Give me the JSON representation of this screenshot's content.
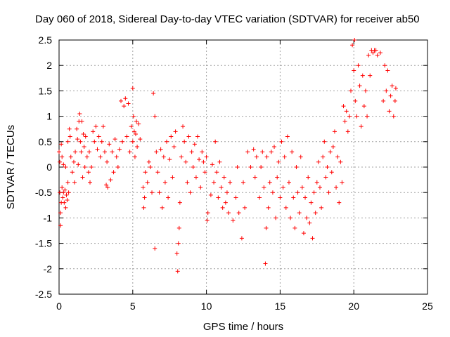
{
  "chart_data": {
    "type": "scatter",
    "title": "Day 060 of 2018, Sidereal Day-to-day VTEC variation (SDTVAR) for receiver ab50",
    "xlabel": "GPS time / hours",
    "ylabel": "SDTVAR / TECUs",
    "xlim": [
      0,
      25
    ],
    "ylim": [
      -2.5,
      2.5
    ],
    "xticks": [
      0,
      5,
      10,
      15,
      20,
      25
    ],
    "xtick_labels": [
      "0",
      "5",
      "10",
      "15",
      "20",
      "25"
    ],
    "yticks": [
      -2.5,
      -2,
      -1.5,
      -1,
      -0.5,
      0,
      0.5,
      1,
      1.5,
      2,
      2.5
    ],
    "ytick_labels": [
      "-2.5",
      "-2",
      "-1.5",
      "-1",
      "-0.5",
      "0",
      "0.5",
      "1",
      "1.5",
      "2",
      "2.5"
    ],
    "grid": true,
    "marker": "plus",
    "marker_color": "#ff0000",
    "series": [
      {
        "name": "ab50",
        "points": [
          [
            0.0,
            0.3
          ],
          [
            0.05,
            0.1
          ],
          [
            0.05,
            -0.5
          ],
          [
            0.1,
            -0.9
          ],
          [
            0.1,
            -1.15
          ],
          [
            0.15,
            -0.7
          ],
          [
            0.15,
            0.45
          ],
          [
            0.2,
            -0.4
          ],
          [
            0.2,
            0.2
          ],
          [
            0.25,
            -0.6
          ],
          [
            0.3,
            -0.5
          ],
          [
            0.3,
            0.05
          ],
          [
            0.35,
            -0.7
          ],
          [
            0.4,
            -0.45
          ],
          [
            0.45,
            -0.8
          ],
          [
            0.45,
            0.0
          ],
          [
            0.5,
            -0.55
          ],
          [
            0.55,
            -0.65
          ],
          [
            0.6,
            -0.3
          ],
          [
            0.6,
            0.5
          ],
          [
            0.65,
            -0.5
          ],
          [
            0.7,
            0.75
          ],
          [
            0.75,
            0.6
          ],
          [
            0.8,
            0.2
          ],
          [
            0.9,
            -0.1
          ],
          [
            1.0,
            0.1
          ],
          [
            1.05,
            -0.3
          ],
          [
            1.1,
            0.3
          ],
          [
            1.2,
            0.75
          ],
          [
            1.25,
            0.55
          ],
          [
            1.3,
            0.05
          ],
          [
            1.35,
            0.9
          ],
          [
            1.4,
            1.05
          ],
          [
            1.45,
            0.5
          ],
          [
            1.5,
            0.3
          ],
          [
            1.55,
            0.9
          ],
          [
            1.6,
            -0.2
          ],
          [
            1.65,
            0.65
          ],
          [
            1.7,
            0.4
          ],
          [
            1.75,
            0.0
          ],
          [
            1.8,
            0.6
          ],
          [
            1.9,
            0.2
          ],
          [
            2.0,
            -0.1
          ],
          [
            2.05,
            0.3
          ],
          [
            2.1,
            -0.3
          ],
          [
            2.2,
            0.0
          ],
          [
            2.3,
            0.7
          ],
          [
            2.4,
            0.5
          ],
          [
            2.5,
            0.8
          ],
          [
            2.6,
            0.35
          ],
          [
            2.7,
            0.6
          ],
          [
            2.8,
            0.2
          ],
          [
            2.9,
            0.5
          ],
          [
            3.0,
            0.8
          ],
          [
            3.1,
            0.3
          ],
          [
            3.2,
            -0.35
          ],
          [
            3.25,
            0.1
          ],
          [
            3.3,
            -0.4
          ],
          [
            3.4,
            0.45
          ],
          [
            3.5,
            -0.25
          ],
          [
            3.6,
            0.3
          ],
          [
            3.7,
            -0.1
          ],
          [
            3.8,
            0.55
          ],
          [
            3.9,
            0.2
          ],
          [
            4.0,
            0.0
          ],
          [
            4.1,
            0.35
          ],
          [
            4.2,
            1.3
          ],
          [
            4.3,
            0.5
          ],
          [
            4.4,
            1.2
          ],
          [
            4.5,
            1.35
          ],
          [
            4.6,
            0.6
          ],
          [
            4.7,
            1.25
          ],
          [
            4.8,
            0.3
          ],
          [
            4.9,
            0.8
          ],
          [
            5.0,
            1.55
          ],
          [
            5.0,
            0.5
          ],
          [
            5.05,
            1.0
          ],
          [
            5.1,
            0.7
          ],
          [
            5.15,
            0.2
          ],
          [
            5.2,
            0.65
          ],
          [
            5.25,
            0.9
          ],
          [
            5.3,
            0.4
          ],
          [
            5.4,
            0.85
          ],
          [
            5.5,
            0.55
          ],
          [
            5.7,
            -0.4
          ],
          [
            5.75,
            -0.8
          ],
          [
            5.8,
            -0.6
          ],
          [
            5.85,
            -0.1
          ],
          [
            6.0,
            -0.3
          ],
          [
            6.1,
            0.1
          ],
          [
            6.2,
            0.0
          ],
          [
            6.3,
            -0.5
          ],
          [
            6.4,
            1.45
          ],
          [
            6.5,
            1.0
          ],
          [
            6.5,
            -1.6
          ],
          [
            6.6,
            0.3
          ],
          [
            6.7,
            -0.1
          ],
          [
            6.8,
            -0.5
          ],
          [
            6.9,
            0.35
          ],
          [
            7.0,
            -0.8
          ],
          [
            7.1,
            0.2
          ],
          [
            7.2,
            -0.3
          ],
          [
            7.3,
            0.5
          ],
          [
            7.4,
            -0.6
          ],
          [
            7.5,
            0.15
          ],
          [
            7.6,
            0.6
          ],
          [
            7.7,
            -0.2
          ],
          [
            7.8,
            0.4
          ],
          [
            7.9,
            0.7
          ],
          [
            8.0,
            -1.7
          ],
          [
            8.05,
            -2.05
          ],
          [
            8.1,
            -1.5
          ],
          [
            8.15,
            -1.2
          ],
          [
            8.2,
            -0.7
          ],
          [
            8.3,
            0.2
          ],
          [
            8.4,
            0.8
          ],
          [
            8.5,
            0.5
          ],
          [
            8.6,
            0.1
          ],
          [
            8.7,
            -0.3
          ],
          [
            8.8,
            0.6
          ],
          [
            8.9,
            -0.5
          ],
          [
            9.0,
            0.3
          ],
          [
            9.1,
            0.0
          ],
          [
            9.2,
            0.45
          ],
          [
            9.3,
            -0.2
          ],
          [
            9.4,
            0.6
          ],
          [
            9.5,
            0.15
          ],
          [
            9.6,
            -0.4
          ],
          [
            9.7,
            0.3
          ],
          [
            9.8,
            0.1
          ],
          [
            9.9,
            -0.1
          ],
          [
            10.0,
            0.2
          ],
          [
            10.05,
            -1.05
          ],
          [
            10.1,
            -0.9
          ],
          [
            10.3,
            -0.55
          ],
          [
            10.4,
            0.05
          ],
          [
            10.5,
            -0.3
          ],
          [
            10.6,
            0.5
          ],
          [
            10.7,
            -0.1
          ],
          [
            10.8,
            -0.6
          ],
          [
            10.9,
            0.1
          ],
          [
            11.0,
            -0.4
          ],
          [
            11.1,
            -0.8
          ],
          [
            11.2,
            -0.2
          ],
          [
            11.3,
            -0.7
          ],
          [
            11.4,
            -0.5
          ],
          [
            11.5,
            -0.9
          ],
          [
            11.6,
            -0.3
          ],
          [
            11.8,
            -1.05
          ],
          [
            12.0,
            -0.6
          ],
          [
            12.1,
            0.0
          ],
          [
            12.2,
            -0.9
          ],
          [
            12.4,
            -1.4
          ],
          [
            12.5,
            -0.3
          ],
          [
            12.6,
            -0.8
          ],
          [
            12.8,
            0.3
          ],
          [
            13.0,
            0.0
          ],
          [
            13.2,
            0.35
          ],
          [
            13.3,
            -0.2
          ],
          [
            13.4,
            0.2
          ],
          [
            13.6,
            -0.6
          ],
          [
            13.7,
            0.0
          ],
          [
            13.8,
            0.3
          ],
          [
            13.9,
            -0.4
          ],
          [
            14.0,
            -1.9
          ],
          [
            14.05,
            -1.2
          ],
          [
            14.1,
            0.2
          ],
          [
            14.2,
            -0.8
          ],
          [
            14.3,
            -0.3
          ],
          [
            14.4,
            0.3
          ],
          [
            14.5,
            -0.5
          ],
          [
            14.6,
            0.4
          ],
          [
            14.7,
            -1.0
          ],
          [
            14.8,
            -0.2
          ],
          [
            14.9,
            0.1
          ],
          [
            15.0,
            -0.6
          ],
          [
            15.1,
            0.5
          ],
          [
            15.2,
            -0.4
          ],
          [
            15.3,
            0.2
          ],
          [
            15.4,
            -0.8
          ],
          [
            15.5,
            0.6
          ],
          [
            15.6,
            -0.3
          ],
          [
            15.7,
            -1.0
          ],
          [
            15.8,
            0.3
          ],
          [
            15.9,
            -0.6
          ],
          [
            16.0,
            -1.2
          ],
          [
            16.1,
            0.0
          ],
          [
            16.2,
            -0.5
          ],
          [
            16.3,
            -0.9
          ],
          [
            16.4,
            0.2
          ],
          [
            16.5,
            -0.4
          ],
          [
            16.6,
            -1.3
          ],
          [
            16.7,
            -0.6
          ],
          [
            16.8,
            -1.0
          ],
          [
            16.9,
            -0.2
          ],
          [
            17.0,
            -1.1
          ],
          [
            17.1,
            -0.7
          ],
          [
            17.2,
            -1.4
          ],
          [
            17.3,
            -0.5
          ],
          [
            17.4,
            -0.9
          ],
          [
            17.5,
            -0.3
          ],
          [
            17.6,
            0.1
          ],
          [
            17.7,
            -0.4
          ],
          [
            17.8,
            -0.8
          ],
          [
            17.9,
            0.2
          ],
          [
            18.0,
            0.5
          ],
          [
            18.1,
            -0.2
          ],
          [
            18.2,
            0.0
          ],
          [
            18.3,
            -0.5
          ],
          [
            18.4,
            0.3
          ],
          [
            18.5,
            -0.1
          ],
          [
            18.6,
            0.4
          ],
          [
            18.7,
            0.7
          ],
          [
            18.8,
            -0.4
          ],
          [
            18.9,
            0.2
          ],
          [
            19.0,
            -0.7
          ],
          [
            19.1,
            0.1
          ],
          [
            19.2,
            -0.3
          ],
          [
            19.3,
            1.2
          ],
          [
            19.4,
            0.9
          ],
          [
            19.5,
            1.1
          ],
          [
            19.6,
            0.7
          ],
          [
            19.7,
            1.0
          ],
          [
            19.8,
            1.5
          ],
          [
            19.9,
            2.4
          ],
          [
            20.0,
            1.9
          ],
          [
            20.05,
            2.5
          ],
          [
            20.1,
            1.3
          ],
          [
            20.2,
            1.0
          ],
          [
            20.3,
            2.0
          ],
          [
            20.4,
            1.6
          ],
          [
            20.5,
            0.8
          ],
          [
            20.6,
            1.8
          ],
          [
            20.7,
            1.2
          ],
          [
            20.8,
            1.5
          ],
          [
            20.9,
            1.0
          ],
          [
            21.0,
            2.2
          ],
          [
            21.1,
            1.8
          ],
          [
            21.2,
            2.3
          ],
          [
            21.3,
            2.25
          ],
          [
            21.4,
            2.3
          ],
          [
            21.5,
            2.3
          ],
          [
            21.6,
            2.2
          ],
          [
            21.8,
            2.25
          ],
          [
            22.0,
            1.3
          ],
          [
            22.1,
            2.0
          ],
          [
            22.2,
            1.5
          ],
          [
            22.3,
            1.9
          ],
          [
            22.4,
            1.1
          ],
          [
            22.5,
            1.4
          ],
          [
            22.6,
            1.6
          ],
          [
            22.7,
            1.0
          ],
          [
            22.8,
            1.3
          ],
          [
            22.85,
            1.55
          ]
        ]
      }
    ]
  }
}
